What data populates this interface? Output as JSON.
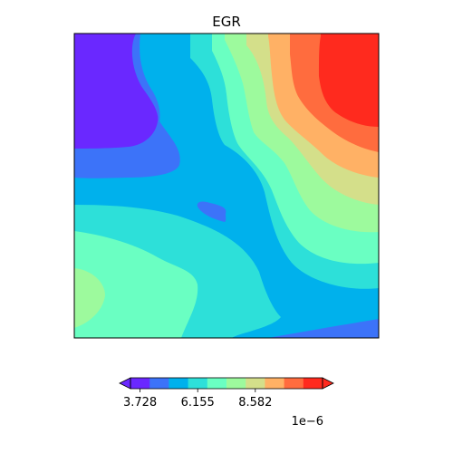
{
  "chart_data": {
    "type": "heatmap",
    "title": "EGR",
    "xlabel": "",
    "ylabel": "",
    "colormap": "rainbow",
    "colorbar": {
      "orientation": "horizontal",
      "placement": "bottom",
      "ticks": [
        3.728,
        6.155,
        8.582
      ],
      "tick_labels": [
        "3.728",
        "6.155",
        "8.582"
      ],
      "multiplier_label": "1e−6",
      "extend": "both",
      "levels": [
        {
          "color": "#6a28ff"
        },
        {
          "color": "#3c73f9"
        },
        {
          "color": "#00b1ec"
        },
        {
          "color": "#2de0d9"
        },
        {
          "color": "#6affc2"
        },
        {
          "color": "#9dfa9d"
        },
        {
          "color": "#d4df8a"
        },
        {
          "color": "#ffb165"
        },
        {
          "color": "#ff6c3e"
        },
        {
          "color": "#ff2a1e"
        }
      ]
    },
    "axes": {
      "ticks_visible": false,
      "grid": false
    }
  }
}
